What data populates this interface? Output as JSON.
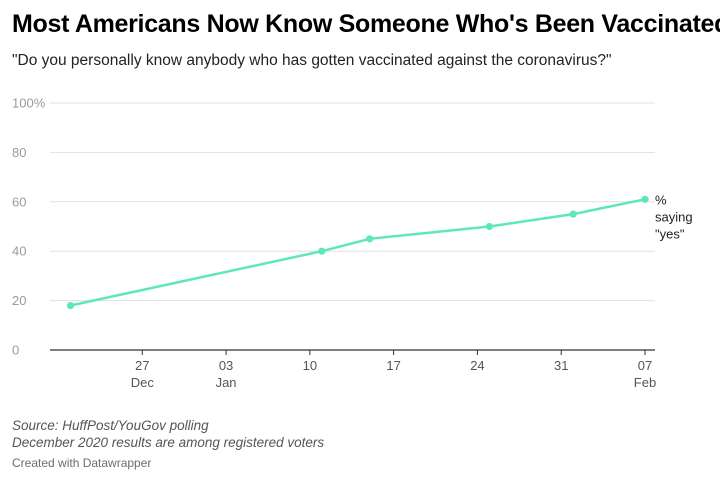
{
  "header": {
    "title": "Most Americans Now Know Someone Who's Been Vaccinated",
    "subtitle": "\"Do you personally know anybody who has gotten vaccinated against the coronavirus?\""
  },
  "footer": {
    "source": "Source: HuffPost/YouGov polling",
    "note": "December 2020 results are among registered voters",
    "credit": "Created with Datawrapper"
  },
  "colors": {
    "line": "#5ee8b5",
    "grid": "#e1e1e1",
    "axis": "#333333"
  },
  "chart_data": {
    "type": "line",
    "title": "Most Americans Now Know Someone Who's Been Vaccinated",
    "subtitle": "\"Do you personally know anybody who has gotten vaccinated against the coronavirus?\"",
    "xlabel": "",
    "ylabel": "",
    "ylim": [
      0,
      100
    ],
    "xlim": [
      "2020-12-20",
      "2021-02-07"
    ],
    "grid": true,
    "y_ticks": [
      {
        "value": 0,
        "label": "0"
      },
      {
        "value": 20,
        "label": "20"
      },
      {
        "value": 40,
        "label": "40"
      },
      {
        "value": 60,
        "label": "60"
      },
      {
        "value": 80,
        "label": "80"
      },
      {
        "value": 100,
        "label": "100%"
      }
    ],
    "x_ticks": [
      {
        "date": "2020-12-27",
        "label": "27",
        "sublabel": "Dec"
      },
      {
        "date": "2021-01-03",
        "label": "03",
        "sublabel": "Jan"
      },
      {
        "date": "2021-01-10",
        "label": "10",
        "sublabel": ""
      },
      {
        "date": "2021-01-17",
        "label": "17",
        "sublabel": ""
      },
      {
        "date": "2021-01-24",
        "label": "24",
        "sublabel": ""
      },
      {
        "date": "2021-01-31",
        "label": "31",
        "sublabel": ""
      },
      {
        "date": "2021-02-07",
        "label": "07",
        "sublabel": "Feb"
      }
    ],
    "series": [
      {
        "name": "% saying \"yes\"",
        "label_lines": [
          "%",
          "saying",
          "\"yes\""
        ],
        "color": "#5ee8b5",
        "points": [
          {
            "x": "2020-12-21",
            "y": 18
          },
          {
            "x": "2021-01-11",
            "y": 40
          },
          {
            "x": "2021-01-15",
            "y": 45
          },
          {
            "x": "2021-01-25",
            "y": 50
          },
          {
            "x": "2021-02-01",
            "y": 55
          },
          {
            "x": "2021-02-07",
            "y": 61
          }
        ]
      }
    ]
  }
}
